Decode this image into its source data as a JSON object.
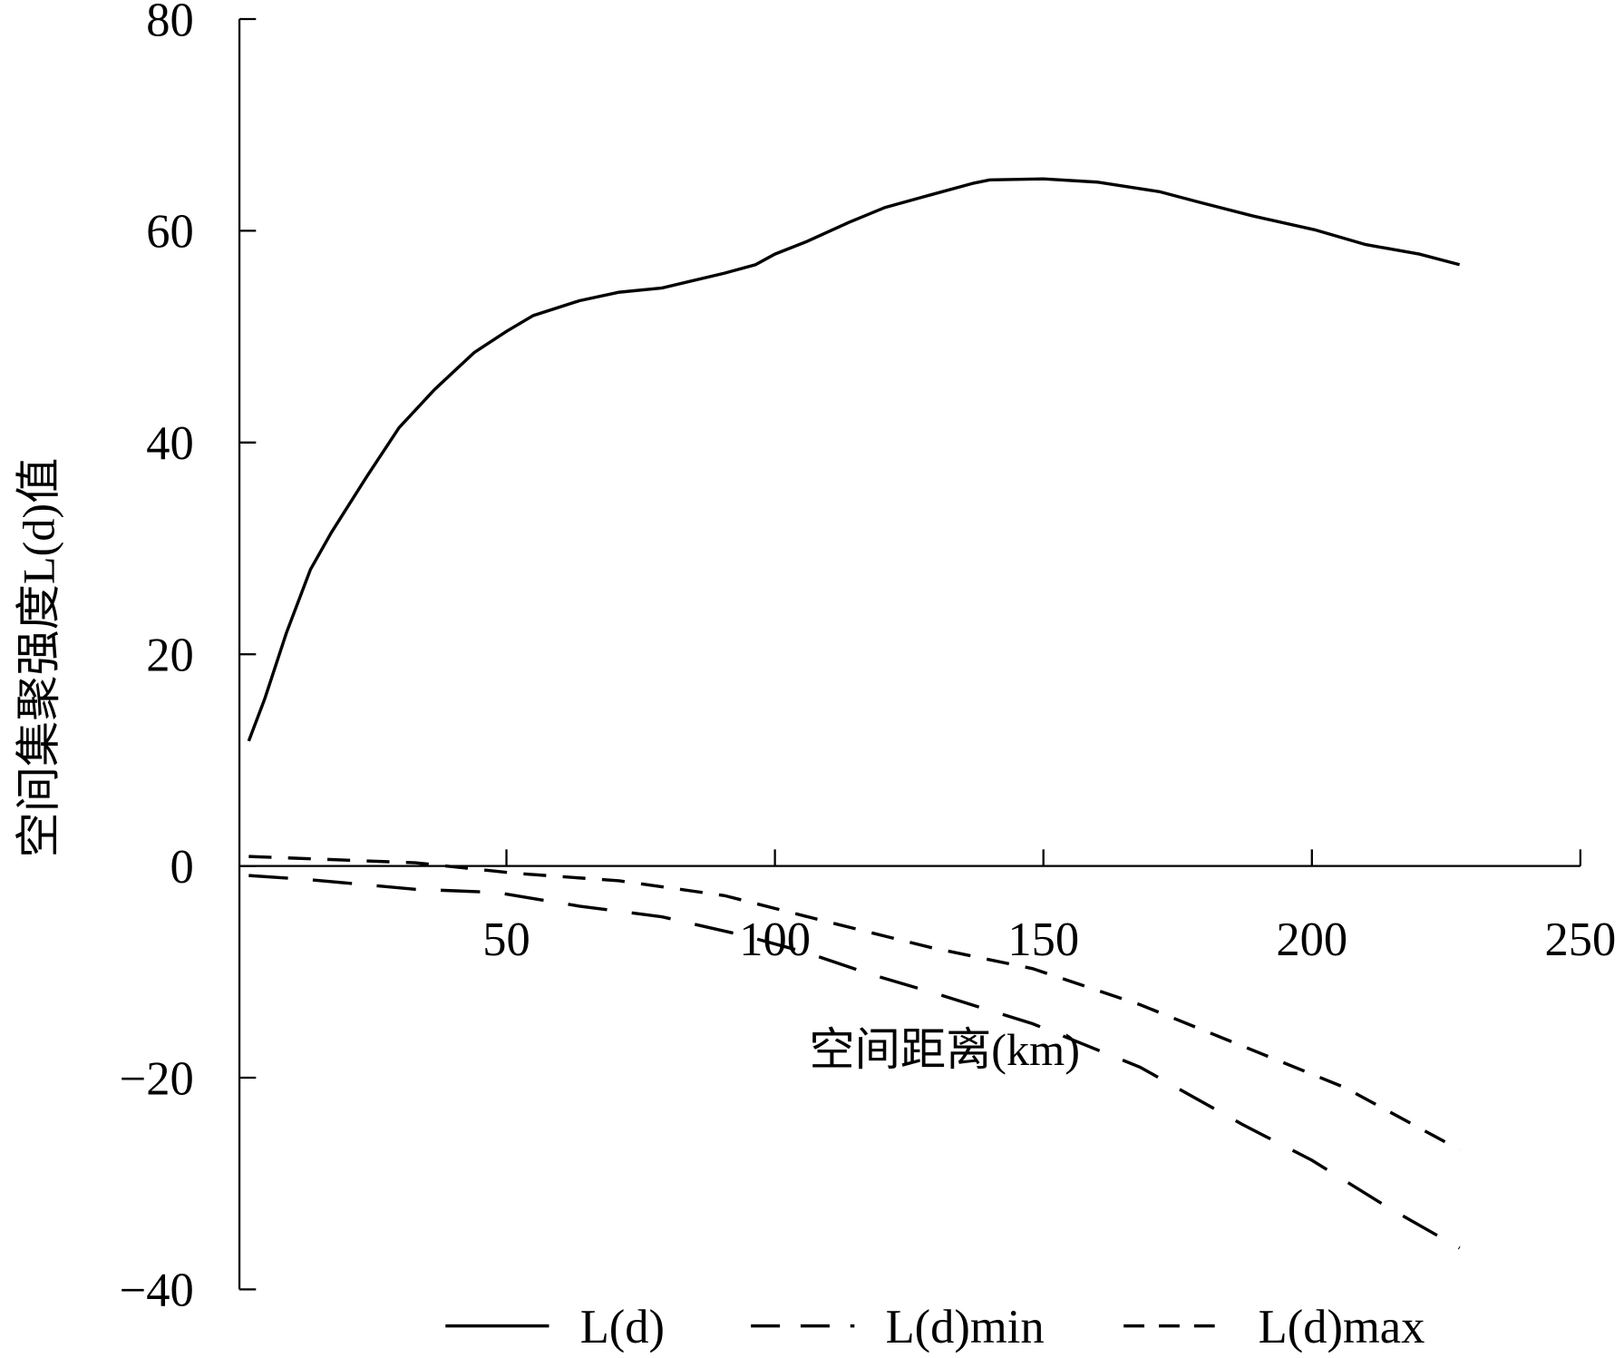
{
  "chart_data": {
    "type": "line",
    "title": "",
    "xlabel": "空间距离(km)",
    "ylabel": "空间集聚强度L(d)值",
    "xlim": [
      0,
      250
    ],
    "ylim": [
      -40,
      80
    ],
    "xticks": [
      50,
      100,
      150,
      200,
      250
    ],
    "xtick_labels": [
      "50",
      "100",
      "150",
      "200",
      "250"
    ],
    "yticks": [
      80,
      60,
      40,
      20,
      0,
      -20,
      -40
    ],
    "ytick_labels": [
      "80",
      "60",
      "40",
      "20",
      "0",
      "−20",
      "−40"
    ],
    "grid": false,
    "legend_position": "bottom",
    "series": [
      {
        "name": "L(d)",
        "style": "solid",
        "x": [
          2,
          5,
          9,
          13.5,
          17.4,
          24,
          30,
          36.6,
          44,
          50,
          55,
          63.6,
          71,
          79,
          90.6,
          96.4,
          100,
          106,
          113.8,
          120.5,
          129,
          137,
          140,
          150,
          160,
          171.6,
          179,
          189,
          200.5,
          210,
          220,
          227.5
        ],
        "y": [
          11.8,
          15.8,
          22,
          28,
          31.5,
          36.8,
          41.4,
          45,
          48.5,
          50.5,
          52,
          53.4,
          54.2,
          54.6,
          56,
          56.8,
          57.8,
          59,
          60.8,
          62.2,
          63.4,
          64.5,
          64.8,
          64.9,
          64.6,
          63.7,
          62.7,
          61.4,
          60.1,
          58.7,
          57.8,
          56.8
        ]
      },
      {
        "name": "L(d)min",
        "style": "long-dash",
        "x": [
          2,
          13.5,
          33,
          48,
          63.6,
          79,
          94.5,
          106,
          117.6,
          129,
          148,
          168,
          187,
          200,
          214,
          227.5
        ],
        "y": [
          -0.9,
          -1.3,
          -2.2,
          -2.5,
          -3.8,
          -4.8,
          -6.6,
          -8.2,
          -10.2,
          -11.9,
          -14.9,
          -19,
          -24.4,
          -27.8,
          -32.2,
          -36.1
        ]
      },
      {
        "name": "L(d)max",
        "style": "short-dash",
        "x": [
          2,
          33,
          52,
          71,
          90.6,
          110,
          129,
          148,
          168,
          187,
          206,
          227.5
        ],
        "y": [
          0.9,
          0.3,
          -0.7,
          -1.4,
          -2.8,
          -5.3,
          -7.7,
          -9.7,
          -13.1,
          -17,
          -20.9,
          -26.8
        ]
      }
    ]
  }
}
